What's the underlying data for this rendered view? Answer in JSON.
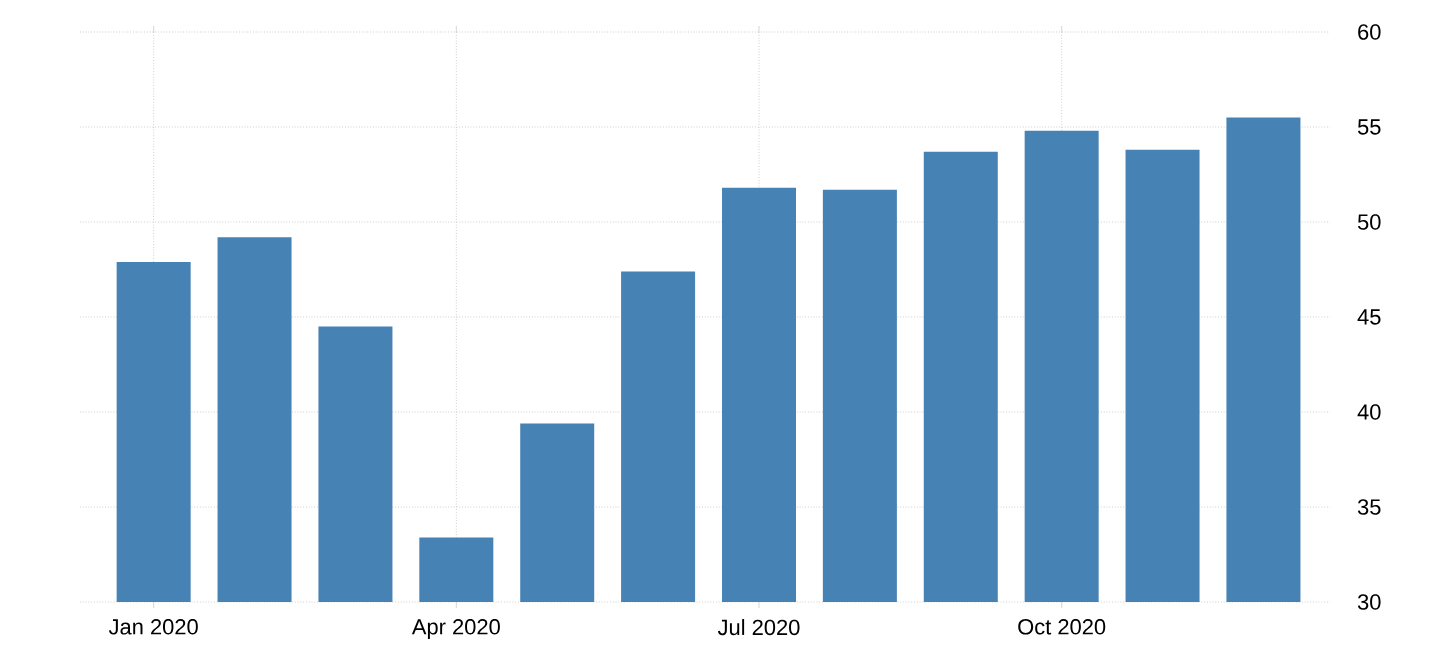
{
  "chart_data": {
    "type": "bar",
    "categories": [
      "Jan 2020",
      null,
      null,
      "Apr 2020",
      null,
      null,
      "Jul 2020",
      null,
      null,
      "Oct 2020",
      null,
      null
    ],
    "values": [
      47.9,
      49.2,
      44.5,
      33.4,
      39.4,
      47.4,
      51.8,
      51.7,
      53.7,
      54.8,
      53.8,
      55.5
    ],
    "color": "#4682b4",
    "ylim": [
      30,
      60
    ],
    "yticks": [
      30,
      35,
      40,
      45,
      50,
      55,
      60
    ],
    "grid": true
  }
}
